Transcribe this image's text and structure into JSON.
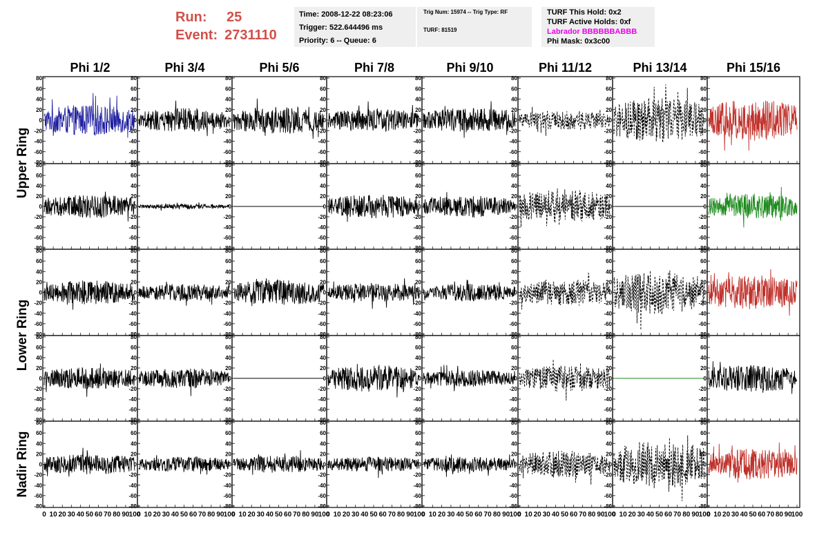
{
  "header": {
    "run_label": "Run:",
    "run_value": "25",
    "event_label": "Event:",
    "event_value": "2731110",
    "time": "Time: 2008-12-22 08:23:06",
    "trigger": "Trigger: 522.644496 ms",
    "priority": "Priority: 6 -- Queue: 6",
    "trig_num": "Trig Num: 15974 -- Trig Type: RF",
    "turf": "TURF: 81519",
    "turf_hold": "TURF This Hold: 0x2",
    "turf_active": "TURF Active Holds: 0xf",
    "labrador": "Labrador BBBBBBABBB",
    "phi_mask": "Phi Mask: 0x3c00",
    "colors": {
      "run": "#d0504a",
      "labrador": "#e800e8",
      "box": "#efefef"
    }
  },
  "chart_data": {
    "type": "line",
    "columns": [
      "Phi 1/2",
      "Phi 3/4",
      "Phi 5/6",
      "Phi 7/8",
      "Phi 9/10",
      "Phi 11/12",
      "Phi 13/14",
      "Phi 15/16"
    ],
    "rows": [
      "Upper Ring",
      "Lower Ring",
      "Nadir Ring"
    ],
    "row_sub": [
      2,
      2,
      1
    ],
    "ylim": [
      -80,
      80
    ],
    "yticks": [
      -80,
      -60,
      -40,
      -20,
      0,
      20,
      40,
      60,
      80
    ],
    "xlim": [
      0,
      100
    ],
    "xticks": [
      0,
      10,
      20,
      30,
      40,
      50,
      60,
      70,
      80,
      90,
      100
    ],
    "grid": false,
    "legend": "none",
    "colors": {
      "black": "#000000",
      "blue": "#2020a0",
      "red": "#c0302a",
      "green": "#1c8a1c"
    },
    "panels": [
      {
        "row": 0,
        "col": 0,
        "color": "blue",
        "style": "solid",
        "amp": 18,
        "flat": false
      },
      {
        "row": 0,
        "col": 1,
        "color": "black",
        "style": "solid",
        "amp": 14,
        "flat": false
      },
      {
        "row": 0,
        "col": 2,
        "color": "black",
        "style": "solid",
        "amp": 16,
        "flat": false
      },
      {
        "row": 0,
        "col": 3,
        "color": "black",
        "style": "solid",
        "amp": 13,
        "flat": false
      },
      {
        "row": 0,
        "col": 4,
        "color": "black",
        "style": "solid",
        "amp": 14,
        "flat": false
      },
      {
        "row": 0,
        "col": 5,
        "color": "black",
        "style": "dashed",
        "amp": 11,
        "flat": false
      },
      {
        "row": 0,
        "col": 6,
        "color": "black",
        "style": "dashed",
        "amp": 26,
        "flat": false
      },
      {
        "row": 0,
        "col": 7,
        "color": "red",
        "style": "solid",
        "amp": 24,
        "flat": false
      },
      {
        "row": 1,
        "col": 0,
        "color": "black",
        "style": "solid",
        "amp": 14,
        "flat": false
      },
      {
        "row": 1,
        "col": 1,
        "color": "black",
        "style": "solid",
        "amp": 3,
        "flat": false
      },
      {
        "row": 1,
        "col": 2,
        "color": "black",
        "style": "solid",
        "amp": 0,
        "flat": true
      },
      {
        "row": 1,
        "col": 3,
        "color": "black",
        "style": "solid",
        "amp": 14,
        "flat": false
      },
      {
        "row": 1,
        "col": 4,
        "color": "black",
        "style": "solid",
        "amp": 12,
        "flat": false
      },
      {
        "row": 1,
        "col": 5,
        "color": "black",
        "style": "dashed",
        "amp": 20,
        "flat": false
      },
      {
        "row": 1,
        "col": 6,
        "color": "black",
        "style": "solid",
        "amp": 0,
        "flat": true
      },
      {
        "row": 1,
        "col": 7,
        "color": "green",
        "style": "solid",
        "amp": 15,
        "flat": false
      },
      {
        "row": 2,
        "col": 0,
        "color": "black",
        "style": "solid",
        "amp": 14,
        "flat": false
      },
      {
        "row": 2,
        "col": 1,
        "color": "black",
        "style": "solid",
        "amp": 10,
        "flat": false
      },
      {
        "row": 2,
        "col": 2,
        "color": "black",
        "style": "solid",
        "amp": 15,
        "flat": false
      },
      {
        "row": 2,
        "col": 3,
        "color": "black",
        "style": "solid",
        "amp": 11,
        "flat": false
      },
      {
        "row": 2,
        "col": 4,
        "color": "black",
        "style": "solid",
        "amp": 10,
        "flat": false
      },
      {
        "row": 2,
        "col": 5,
        "color": "black",
        "style": "dashed",
        "amp": 16,
        "flat": false
      },
      {
        "row": 2,
        "col": 6,
        "color": "black",
        "style": "dashed",
        "amp": 26,
        "flat": false
      },
      {
        "row": 2,
        "col": 7,
        "color": "red",
        "style": "solid",
        "amp": 20,
        "flat": false
      },
      {
        "row": 3,
        "col": 0,
        "color": "black",
        "style": "solid",
        "amp": 13,
        "flat": false
      },
      {
        "row": 3,
        "col": 1,
        "color": "black",
        "style": "solid",
        "amp": 12,
        "flat": false
      },
      {
        "row": 3,
        "col": 2,
        "color": "black",
        "style": "solid",
        "amp": 0,
        "flat": true
      },
      {
        "row": 3,
        "col": 3,
        "color": "black",
        "style": "solid",
        "amp": 16,
        "flat": false
      },
      {
        "row": 3,
        "col": 4,
        "color": "black",
        "style": "solid",
        "amp": 10,
        "flat": false
      },
      {
        "row": 3,
        "col": 5,
        "color": "black",
        "style": "dashed",
        "amp": 15,
        "flat": false
      },
      {
        "row": 3,
        "col": 6,
        "color": "green",
        "style": "solid",
        "amp": 0,
        "flat": true
      },
      {
        "row": 3,
        "col": 7,
        "color": "black",
        "style": "solid",
        "amp": 16,
        "flat": false
      },
      {
        "row": 4,
        "col": 0,
        "color": "black",
        "style": "solid",
        "amp": 12,
        "flat": false
      },
      {
        "row": 4,
        "col": 1,
        "color": "black",
        "style": "solid",
        "amp": 9,
        "flat": false
      },
      {
        "row": 4,
        "col": 2,
        "color": "black",
        "style": "solid",
        "amp": 10,
        "flat": false
      },
      {
        "row": 4,
        "col": 3,
        "color": "black",
        "style": "solid",
        "amp": 9,
        "flat": false
      },
      {
        "row": 4,
        "col": 4,
        "color": "black",
        "style": "solid",
        "amp": 9,
        "flat": false
      },
      {
        "row": 4,
        "col": 5,
        "color": "black",
        "style": "dashed",
        "amp": 16,
        "flat": false
      },
      {
        "row": 4,
        "col": 6,
        "color": "black",
        "style": "dashed",
        "amp": 28,
        "flat": false
      },
      {
        "row": 4,
        "col": 7,
        "color": "red",
        "style": "solid",
        "amp": 18,
        "flat": false
      }
    ]
  }
}
